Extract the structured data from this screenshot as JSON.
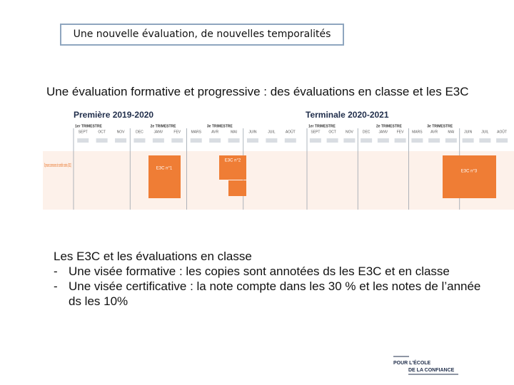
{
  "header": {
    "title": "Une nouvelle évaluation, de nouvelles temporalités"
  },
  "subtitle": "Une évaluation formative et progressive : des évaluations en classe et les E3C",
  "timeline": {
    "years": [
      "Première 2019-2020",
      "Terminale 2020-2021"
    ],
    "trimesters": [
      "1er TRIMESTRE",
      "2e TRIMESTRE",
      "3e TRIMESTRE"
    ],
    "months": [
      "SEPT",
      "OCT",
      "NOV",
      "DEC",
      "JANV",
      "FEV",
      "MARS",
      "AVR",
      "MAI",
      "JUIN",
      "JUIL",
      "AOÛT"
    ],
    "row_label": "Épreuves communes de contrôle continu (E3C)",
    "boxes": [
      "E3C n°1",
      "E3C n°2",
      "E3C n°3"
    ]
  },
  "body": {
    "heading": "Les E3C et les évaluations en classe",
    "bullets": [
      "Une visée formative : les copies sont annotées ds les E3C et en classe",
      "Une visée certificative : la note compte dans les 30 % et les notes de l’année ds les 10%"
    ]
  },
  "logo": [
    "POUR L'ÉCOLE",
    "DE LA CONFIANCE"
  ]
}
